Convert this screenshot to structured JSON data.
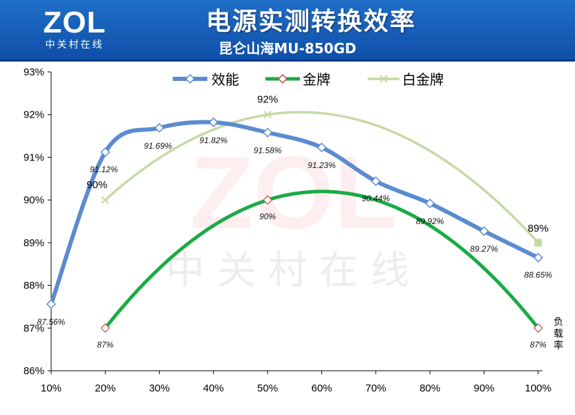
{
  "header": {
    "logo_text": "ZOL",
    "logo_subtext": "中关村在线",
    "title": "电源实测转换效率",
    "subtitle": "昆仑山海MU-850GD"
  },
  "watermark": {
    "logo": "ZOL",
    "text": "中关村在线"
  },
  "chart_data": {
    "type": "line",
    "title": "电源实测转换效率",
    "subtitle": "昆仑山海MU-850GD",
    "x": [
      "10%",
      "20%",
      "30%",
      "40%",
      "50%",
      "60%",
      "70%",
      "80%",
      "90%",
      "100%"
    ],
    "xlabel": "负载率",
    "ylabel": "",
    "ylim": [
      86,
      93
    ],
    "yticks": [
      "86%",
      "87%",
      "88%",
      "89%",
      "90%",
      "91%",
      "92%",
      "93%"
    ],
    "grid": false,
    "legend_position": "top",
    "series": [
      {
        "name": "效能",
        "color": "#5b8bd0",
        "values": [
          87.56,
          91.12,
          91.69,
          91.82,
          91.58,
          91.23,
          90.44,
          89.92,
          89.27,
          88.65
        ],
        "labels": [
          "87.56%",
          "91.12%",
          "91.69%",
          "91.82%",
          "91.58%",
          "91.23%",
          "90.44%",
          "89.92%",
          "89.27%",
          "88.65%"
        ]
      },
      {
        "name": "金牌",
        "color": "#1aab45",
        "points": [
          [
            1,
            87
          ],
          [
            4,
            90
          ],
          [
            9,
            87
          ]
        ],
        "labels": [
          "87%",
          "90%",
          "87%"
        ]
      },
      {
        "name": "白金牌",
        "color": "#c6d9a4",
        "points": [
          [
            1,
            90
          ],
          [
            4,
            92
          ],
          [
            9,
            89
          ]
        ],
        "labels": [
          "90%",
          "92%",
          "89%"
        ]
      }
    ]
  }
}
